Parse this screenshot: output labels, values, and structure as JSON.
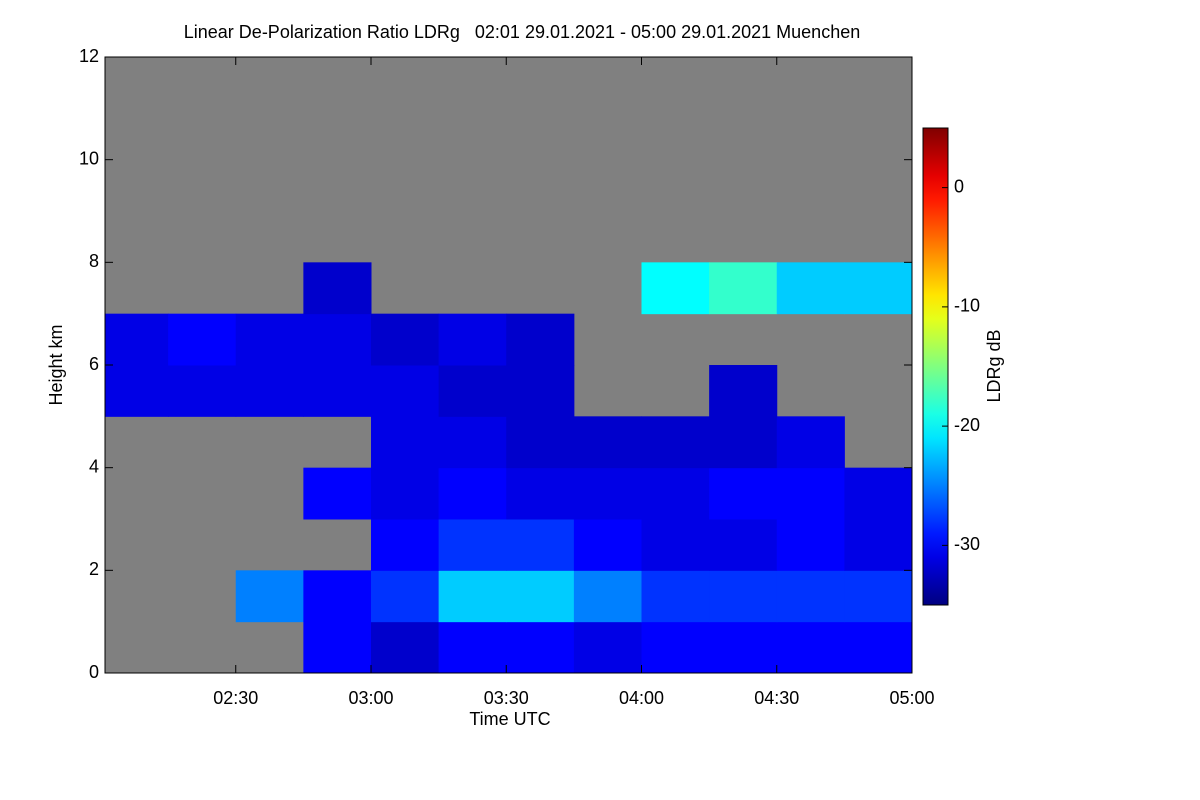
{
  "chart_data": {
    "type": "heatmap",
    "title": "Linear De-Polarization Ratio LDRg   02:01 29.01.2021 - 05:00 29.01.2021 Muenchen",
    "x_label": "Time UTC",
    "y_label": "Height km",
    "colorbar_label": "LDRg dB",
    "x_edges": [
      121,
      135,
      150,
      165,
      180,
      195,
      210,
      225,
      240,
      255,
      270,
      285,
      300
    ],
    "y_edges": [
      0,
      1,
      2,
      3,
      4,
      5,
      6,
      7,
      8,
      9,
      10,
      11,
      12
    ],
    "values": [
      [
        null,
        null,
        null,
        -30,
        -32,
        -30,
        -30,
        -31,
        -30,
        -30,
        -30,
        -30
      ],
      [
        null,
        null,
        -25,
        -30,
        -28,
        -22,
        -22,
        -25,
        -28,
        -28,
        -28,
        -28
      ],
      [
        null,
        null,
        null,
        null,
        -30,
        -28,
        -28,
        -30,
        -31,
        -31,
        -30,
        -31
      ],
      [
        null,
        null,
        null,
        -30,
        -31,
        -30,
        -31,
        -31,
        -31,
        -30,
        -30,
        -31
      ],
      [
        null,
        null,
        null,
        null,
        -31,
        -31,
        -32,
        -32,
        -32,
        -32,
        -31,
        null
      ],
      [
        -31,
        -31,
        -31,
        -31,
        -31,
        -32,
        -32,
        null,
        null,
        -32,
        null,
        null
      ],
      [
        -31,
        -30,
        -31,
        -31,
        -32,
        -31,
        -32,
        null,
        null,
        null,
        null,
        null
      ],
      [
        null,
        null,
        null,
        -32,
        null,
        null,
        null,
        null,
        -20,
        -18,
        -22,
        -22
      ],
      [
        null,
        null,
        null,
        null,
        null,
        null,
        null,
        null,
        null,
        null,
        null,
        null
      ],
      [
        null,
        null,
        null,
        null,
        null,
        null,
        null,
        null,
        null,
        null,
        null,
        null
      ],
      [
        null,
        null,
        null,
        null,
        null,
        null,
        null,
        null,
        null,
        null,
        null,
        null
      ],
      [
        null,
        null,
        null,
        null,
        null,
        null,
        null,
        null,
        null,
        null,
        null,
        null
      ]
    ],
    "missing_color": "#808080",
    "colormap": "jet",
    "xlim": [
      121,
      300
    ],
    "xticks": [
      {
        "value": 150,
        "label": "02:30"
      },
      {
        "value": 180,
        "label": "03:00"
      },
      {
        "value": 210,
        "label": "03:30"
      },
      {
        "value": 240,
        "label": "04:00"
      },
      {
        "value": 270,
        "label": "04:30"
      },
      {
        "value": 300,
        "label": "05:00"
      }
    ],
    "ylim": [
      0,
      12
    ],
    "yticks": [
      0,
      2,
      4,
      6,
      8,
      10,
      12
    ],
    "clim": [
      -35,
      5
    ],
    "cticks": [
      0,
      -10,
      -20,
      -30
    ]
  }
}
